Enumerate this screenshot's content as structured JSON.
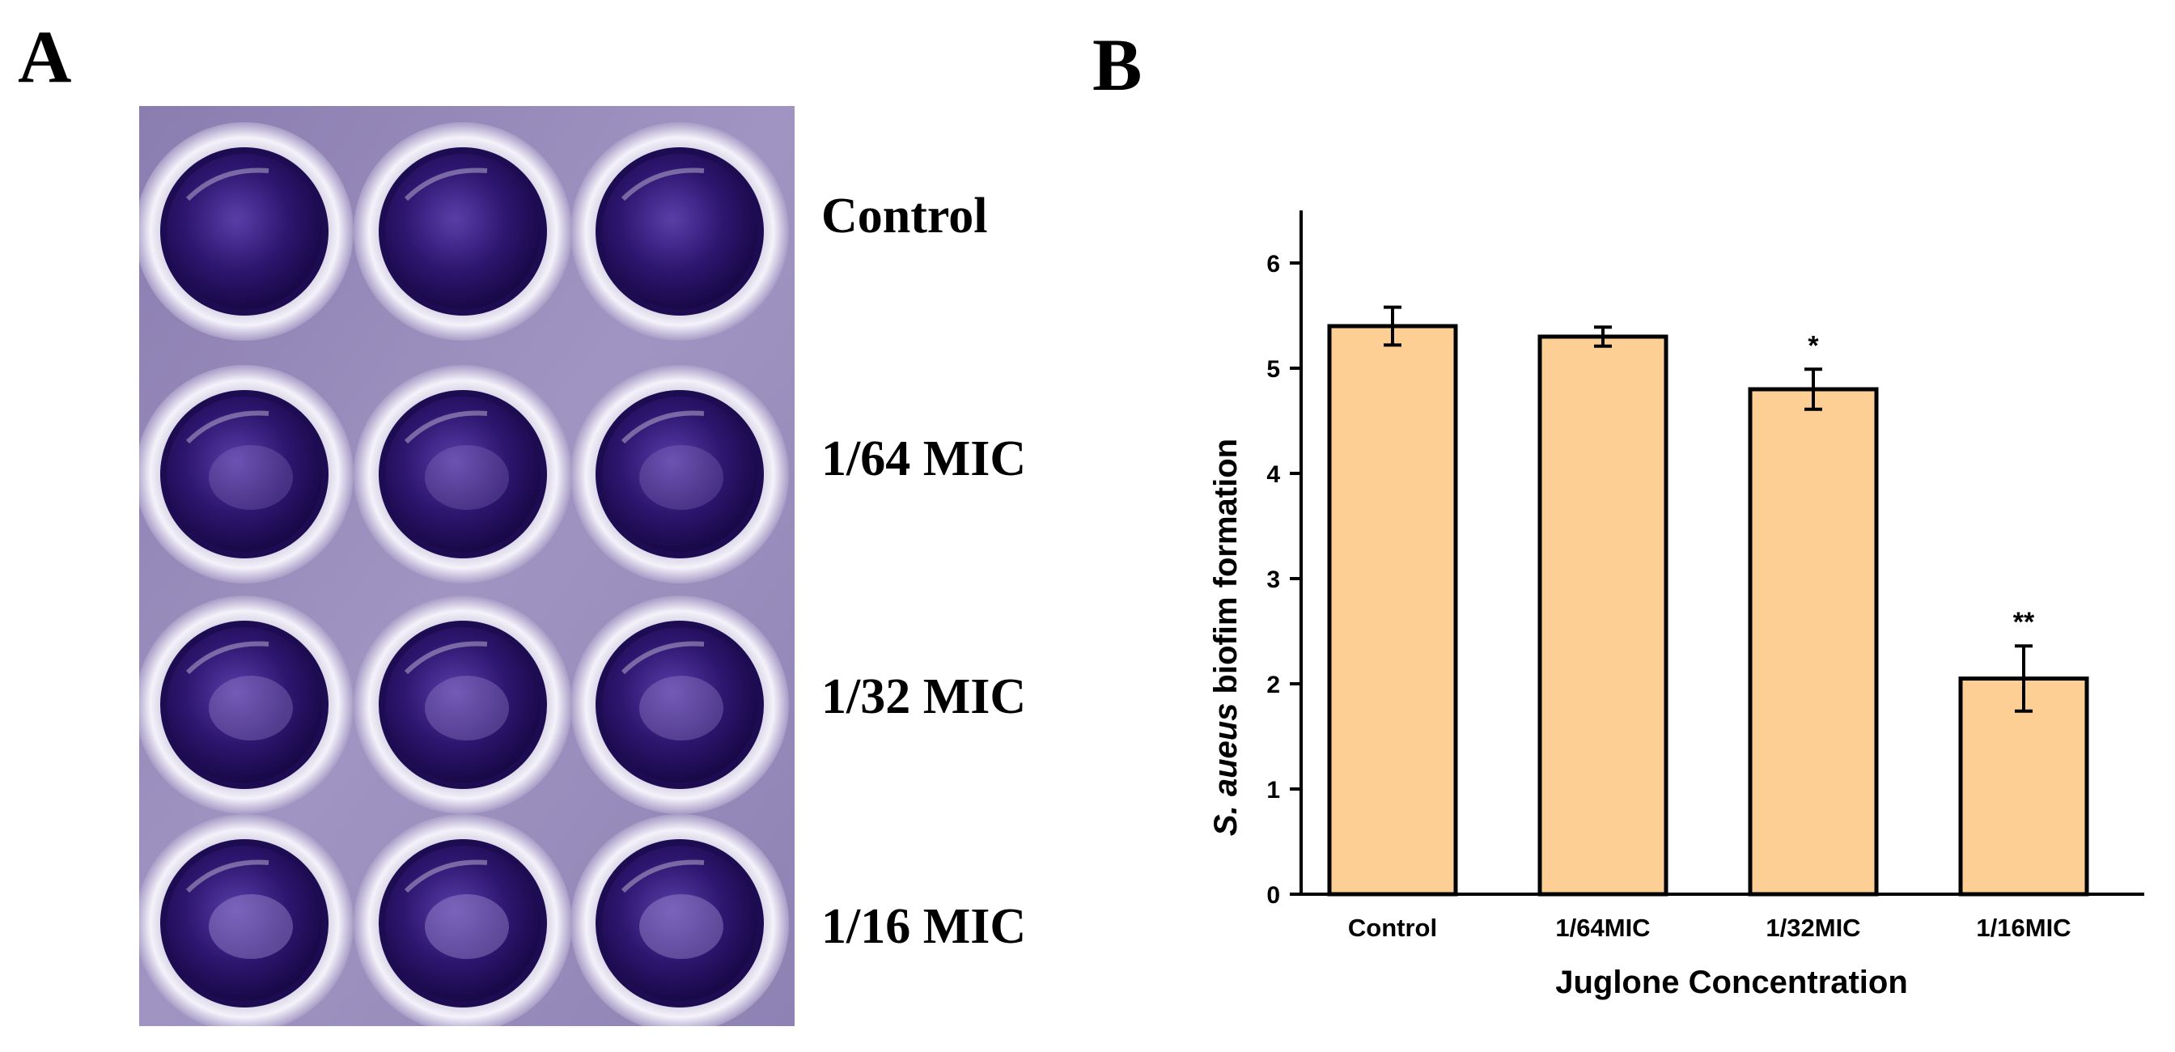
{
  "panel_a": {
    "letter": "A",
    "row_labels": [
      "Control",
      "1/64 MIC",
      "1/32 MIC",
      "1/16 MIC"
    ]
  },
  "panel_b": {
    "letter": "B"
  },
  "colors": {
    "bar_fill": "#fdcf95",
    "axis": "#000000",
    "stain": "#2a1266",
    "plate": "#9287b4"
  },
  "chart_data": {
    "type": "bar",
    "categories": [
      "Control",
      "1/64MIC",
      "1/32MIC",
      "1/16MIC"
    ],
    "values": [
      5.4,
      5.3,
      4.8,
      2.05
    ],
    "errors": [
      0.18,
      0.09,
      0.19,
      0.31
    ],
    "significance": [
      "",
      "",
      "*",
      "**"
    ],
    "xlabel": "Juglone Concentration",
    "ylabel_italic": "S. aueus",
    "ylabel_rest": " biofim formation",
    "ylim": [
      0,
      6.5
    ],
    "yticks": [
      0,
      1,
      2,
      3,
      4,
      5,
      6
    ],
    "grid": false
  }
}
